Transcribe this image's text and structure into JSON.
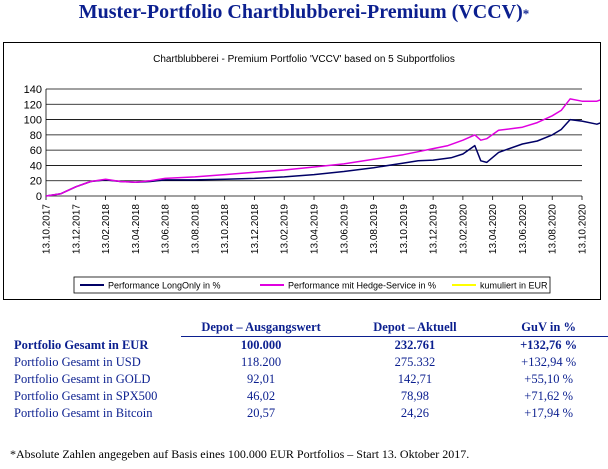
{
  "page": {
    "title": "Muster-Portfolio Chartblubberei-Premium (VCCV)",
    "title_mark": "*"
  },
  "chart_data": {
    "type": "line",
    "title": "Chartblubberei - Premium Portfolio 'VCCV' based on 5 Subportfolios",
    "y_ticks": [
      "0",
      "20",
      "40",
      "60",
      "80",
      "100",
      "120",
      "140"
    ],
    "ylim": [
      0,
      140
    ],
    "x_ticks": [
      "13.10.2017",
      "13.12.2017",
      "13.02.2018",
      "13.04.2018",
      "13.06.2018",
      "13.08.2018",
      "13.10.2018",
      "13.12.2018",
      "13.02.2019",
      "13.04.2019",
      "13.06.2019",
      "13.08.2019",
      "13.10.2019",
      "13.12.2019",
      "13.02.2020",
      "13.04.2020",
      "13.06.2020",
      "13.08.2020",
      "13.10.2020"
    ],
    "grid": true,
    "legend_position": "bottom",
    "series": [
      {
        "name": "Performance LongOnly in %",
        "color": "#000066",
        "points": [
          [
            0,
            0
          ],
          [
            0.5,
            3
          ],
          [
            1,
            12
          ],
          [
            1.5,
            19
          ],
          [
            2,
            21
          ],
          [
            2.5,
            19
          ],
          [
            3,
            18
          ],
          [
            3.5,
            19
          ],
          [
            4,
            21
          ],
          [
            5,
            21
          ],
          [
            6,
            22
          ],
          [
            7,
            23
          ],
          [
            8,
            25
          ],
          [
            9,
            28
          ],
          [
            10,
            32
          ],
          [
            11,
            37
          ],
          [
            12,
            43
          ],
          [
            12.5,
            46
          ],
          [
            13,
            47
          ],
          [
            13.6,
            50
          ],
          [
            14,
            55
          ],
          [
            14.4,
            66
          ],
          [
            14.6,
            46
          ],
          [
            14.8,
            44
          ],
          [
            15.2,
            57
          ],
          [
            16,
            68
          ],
          [
            16.5,
            72
          ],
          [
            17,
            80
          ],
          [
            17.3,
            87
          ],
          [
            17.6,
            100
          ],
          [
            18,
            98
          ],
          [
            18.5,
            94
          ],
          [
            19,
            101
          ]
        ]
      },
      {
        "name": "Performance mit Hedge-Service in %",
        "color": "#e000e0",
        "points": [
          [
            0,
            0
          ],
          [
            0.5,
            3
          ],
          [
            1,
            12
          ],
          [
            1.5,
            19
          ],
          [
            2,
            22
          ],
          [
            2.5,
            19
          ],
          [
            3,
            18
          ],
          [
            3.5,
            20
          ],
          [
            4,
            23
          ],
          [
            5,
            25
          ],
          [
            6,
            28
          ],
          [
            7,
            31
          ],
          [
            8,
            34
          ],
          [
            9,
            38
          ],
          [
            10,
            42
          ],
          [
            11,
            48
          ],
          [
            12,
            54
          ],
          [
            12.5,
            58
          ],
          [
            13,
            62
          ],
          [
            13.5,
            66
          ],
          [
            14,
            73
          ],
          [
            14.4,
            80
          ],
          [
            14.6,
            73
          ],
          [
            14.8,
            75
          ],
          [
            15.2,
            86
          ],
          [
            16,
            90
          ],
          [
            16.5,
            96
          ],
          [
            17,
            105
          ],
          [
            17.3,
            112
          ],
          [
            17.6,
            127
          ],
          [
            18,
            124
          ],
          [
            18.5,
            124
          ],
          [
            19,
            131
          ]
        ]
      },
      {
        "name": "kumuliert in EUR",
        "color": "#ffff00",
        "points": []
      }
    ]
  },
  "table": {
    "header": {
      "label": "",
      "col1": "Depot – Ausgangswert",
      "col2": "Depot – Aktuell",
      "col3": "GuV in %"
    },
    "rows": [
      {
        "label": "Portfolio Gesamt in EUR",
        "v1": "100.000",
        "v2": "232.761",
        "v3": "+132,76 %"
      },
      {
        "label": "Portfolio Gesamt in USD",
        "v1": "118.200",
        "v2": "275.332",
        "v3": "+132,94 %"
      },
      {
        "label": "Portfolio Gesamt in GOLD",
        "v1": "92,01",
        "v2": "142,71",
        "v3": "+55,10 %"
      },
      {
        "label": "Portfolio Gesamt in SPX500",
        "v1": "46,02",
        "v2": "78,98",
        "v3": "+71,62 %"
      },
      {
        "label": "Portfolio Gesamt in Bitcoin",
        "v1": "20,57",
        "v2": "24,26",
        "v3": "+17,94 %"
      }
    ]
  },
  "footnote": "*Absolute Zahlen angegeben auf Basis eines 100.000 EUR Portfolios – Start 13. Oktober 2017."
}
